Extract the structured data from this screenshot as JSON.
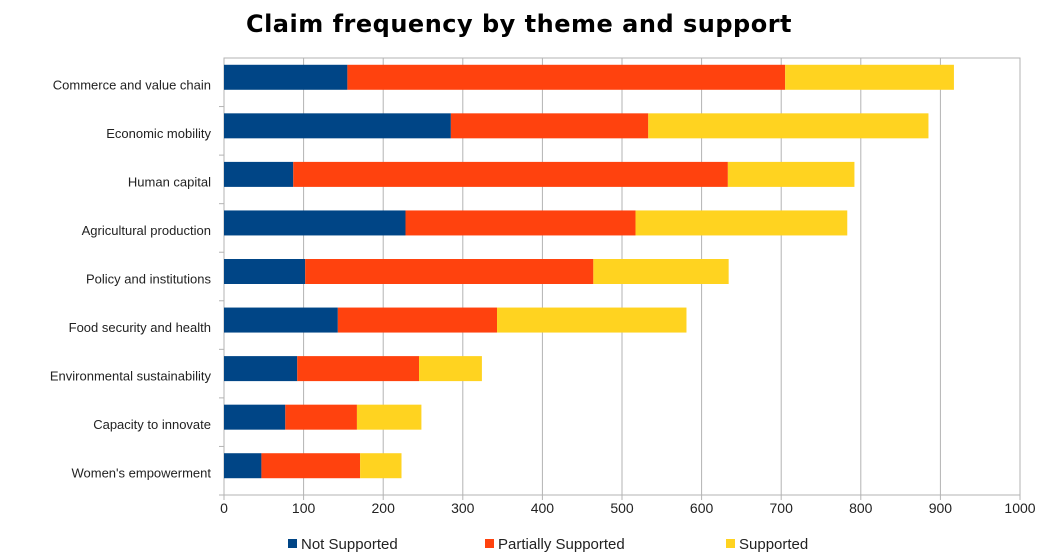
{
  "chart_data": {
    "type": "bar",
    "orientation": "horizontal",
    "stacked": true,
    "title": "Claim frequency by theme and support",
    "categories": [
      "Commerce and value chain",
      "Economic mobility",
      "Human capital",
      "Agricultural production",
      "Policy and institutions",
      "Food security and health",
      "Environmental sustainability",
      "Capacity to innovate",
      "Women's empowerment"
    ],
    "series": [
      {
        "name": "Not Supported",
        "color": "#004586",
        "values": [
          155,
          285,
          87,
          228,
          102,
          143,
          92,
          77,
          47
        ]
      },
      {
        "name": "Partially Supported",
        "color": "#ff420e",
        "values": [
          550,
          248,
          546,
          289,
          362,
          200,
          153,
          90,
          124
        ]
      },
      {
        "name": "Supported",
        "color": "#ffd320",
        "values": [
          212,
          352,
          159,
          266,
          170,
          238,
          79,
          81,
          52
        ]
      }
    ],
    "xlim": [
      0,
      1000
    ],
    "xticks": [
      "0",
      "100",
      "200",
      "300",
      "400",
      "500",
      "600",
      "700",
      "800",
      "900",
      "1000"
    ],
    "grid": true,
    "legend_position": "bottom"
  }
}
